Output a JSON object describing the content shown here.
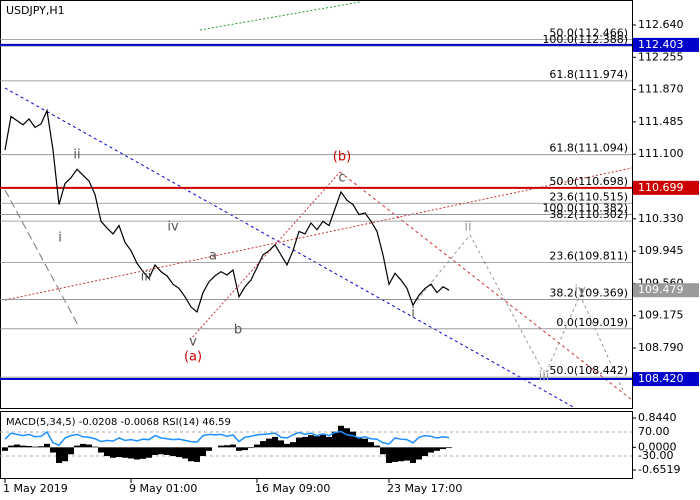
{
  "chart_data": [
    {
      "type": "line",
      "title": "USDJPY,H1",
      "categories": [
        "1 May 2019",
        null,
        null,
        null,
        null,
        null,
        null,
        null,
        null,
        null,
        null,
        null,
        null,
        null,
        null,
        null,
        null,
        null,
        null,
        null,
        null,
        "9 May 01:00",
        null,
        null,
        null,
        null,
        null,
        null,
        null,
        null,
        null,
        null,
        null,
        null,
        null,
        null,
        null,
        null,
        null,
        null,
        null,
        null,
        "16 May 09:00",
        null,
        null,
        null,
        null,
        null,
        null,
        null,
        null,
        null,
        null,
        null,
        null,
        null,
        null,
        null,
        null,
        null,
        null,
        null,
        null,
        null,
        "23 May 17:00",
        null,
        null,
        null,
        null,
        null,
        null,
        null,
        null,
        null,
        null
      ],
      "series": [
        {
          "color": "#000000",
          "values": [
            111.15,
            111.55,
            111.5,
            111.45,
            111.52,
            111.42,
            111.46,
            111.62,
            111.15,
            110.5,
            110.75,
            110.82,
            110.92,
            110.85,
            110.78,
            110.62,
            110.3,
            110.22,
            110.15,
            110.25,
            110.05,
            109.95,
            109.8,
            109.7,
            109.62,
            109.78,
            109.7,
            109.65,
            109.55,
            109.5,
            109.4,
            109.28,
            109.22,
            109.45,
            109.58,
            109.65,
            109.7,
            109.66,
            109.72,
            109.4,
            109.52,
            109.6,
            109.75,
            109.9,
            109.95,
            110.02,
            109.9,
            109.78,
            109.95,
            110.18,
            110.15,
            110.28,
            110.2,
            110.3,
            110.25,
            110.45,
            110.65,
            110.55,
            110.5,
            110.38,
            110.4,
            110.3,
            110.18,
            109.9,
            109.55,
            109.68,
            109.6,
            109.5,
            109.3,
            109.42,
            109.5,
            109.55,
            109.45,
            109.52,
            109.479
          ]
        }
      ],
      "ylim": [
        108.075,
        112.938
      ],
      "yticks": [
        {
          "value": 112.64,
          "label": "112.640"
        },
        112.255,
        {
          "value": 111.87,
          "label": "111.870"
        },
        111.485,
        {
          "value": 111.1,
          "label": "111.100"
        },
        {
          "value": 110.33,
          "label": "110.330"
        },
        109.945,
        {
          "value": 109.56,
          "label": "109.560"
        },
        109.175,
        {
          "value": 108.79,
          "label": "108.790"
        }
      ],
      "fib_levels": [
        {
          "value": 112.466,
          "label": "50.0(112.466)"
        },
        {
          "value": 112.388,
          "label": "100.0(112.388)"
        },
        {
          "value": 111.974,
          "label": "61.8(111.974)"
        },
        {
          "value": 111.094,
          "label": "61.8(111.094)"
        },
        {
          "value": 110.698,
          "label": "50.0(110.698)"
        },
        {
          "value": 110.515,
          "label": "23.6(110.515)"
        },
        {
          "value": 110.382,
          "label": "100.0(110.382)"
        },
        {
          "value": 110.302,
          "label": "38.2(110.302)"
        },
        {
          "value": 109.811,
          "label": "23.6(109.811)"
        },
        {
          "value": 109.369,
          "label": "38.2(109.369)"
        },
        {
          "value": 109.019,
          "label": "0.0(109.019)"
        },
        {
          "value": 108.442,
          "label": "50.0(108.442)"
        }
      ],
      "levels": [
        {
          "value": 112.403,
          "color": "#0000cc"
        },
        {
          "value": 110.699,
          "color": "#cc0000"
        },
        {
          "value": 109.479,
          "color": "#9a9a9a"
        },
        {
          "value": 108.42,
          "label": "108.420",
          "color": "#0000cc"
        }
      ],
      "annotations": [
        {
          "text": "ii",
          "color": "#555555"
        },
        {
          "text": "i",
          "color": "#555555"
        },
        {
          "text": "iv",
          "color": "#555555"
        },
        {
          "text": "iii",
          "color": "#555555"
        },
        {
          "text": "v",
          "color": "#555555"
        },
        {
          "text": "a",
          "color": "#555555"
        },
        {
          "text": "b",
          "color": "#555555"
        },
        {
          "text": "c",
          "color": "#555555"
        },
        {
          "text": "(a)",
          "color": "#cc0000"
        },
        {
          "text": "(b)",
          "color": "#cc0000"
        },
        {
          "text": "i",
          "color": "#555555"
        },
        {
          "text": "ii",
          "color": "#999999"
        },
        {
          "text": "iv",
          "color": "#999999"
        },
        {
          "text": "iii",
          "color": "#999999"
        }
      ]
    },
    {
      "type": "macd",
      "title": "MACD(5,34,5) -0.0208 -0.0068 RSI(14) 46.59",
      "series": [
        {
          "type": "bar",
          "color": "#000000",
          "values": [
            -0.1,
            0.05,
            0.08,
            0.05,
            0.04,
            0.02,
            0.03,
            0.1,
            -0.15,
            -0.45,
            -0.4,
            -0.2,
            0.05,
            0.1,
            0.08,
            0.02,
            -0.15,
            -0.25,
            -0.3,
            -0.28,
            -0.3,
            -0.32,
            -0.35,
            -0.33,
            -0.3,
            -0.22,
            -0.2,
            -0.22,
            -0.25,
            -0.28,
            -0.32,
            -0.4,
            -0.42,
            -0.25,
            -0.1,
            0.0,
            0.05,
            0.06,
            0.08,
            -0.1,
            -0.08,
            -0.02,
            0.08,
            0.18,
            0.25,
            0.3,
            0.2,
            0.1,
            0.15,
            0.28,
            0.3,
            0.35,
            0.32,
            0.36,
            0.3,
            0.45,
            0.62,
            0.55,
            0.45,
            0.3,
            0.25,
            0.15,
            0.05,
            -0.2,
            -0.45,
            -0.42,
            -0.4,
            -0.38,
            -0.45,
            -0.35,
            -0.25,
            -0.15,
            -0.1,
            -0.05,
            -0.0208
          ]
        },
        {
          "type": "line",
          "axis": "y2",
          "color": "#1e90ff",
          "values": [
            40,
            65,
            60,
            55,
            60,
            50,
            52,
            70,
            25,
            15,
            45,
            55,
            60,
            50,
            48,
            42,
            30,
            35,
            32,
            45,
            35,
            38,
            33,
            40,
            38,
            55,
            45,
            42,
            38,
            40,
            35,
            30,
            28,
            55,
            60,
            58,
            60,
            52,
            58,
            30,
            48,
            52,
            58,
            60,
            62,
            65,
            48,
            45,
            58,
            68,
            60,
            65,
            55,
            62,
            55,
            68,
            72,
            58,
            55,
            45,
            50,
            42,
            40,
            25,
            20,
            45,
            40,
            38,
            25,
            48,
            55,
            52,
            45,
            50,
            46.59
          ]
        }
      ],
      "ylim": [
        -0.6519,
        0.844
      ],
      "yticks": [
        {
          "value": 0.844,
          "label": "0.8440"
        },
        {
          "value": 0,
          "label": "0.0000"
        },
        -0.6519
      ],
      "y2lim": [
        -121.7,
        153.3
      ],
      "y2ticks": [
        {
          "value": 70,
          "label": "70.00"
        },
        {
          "value": -30,
          "label": "-30.00"
        }
      ]
    }
  ]
}
